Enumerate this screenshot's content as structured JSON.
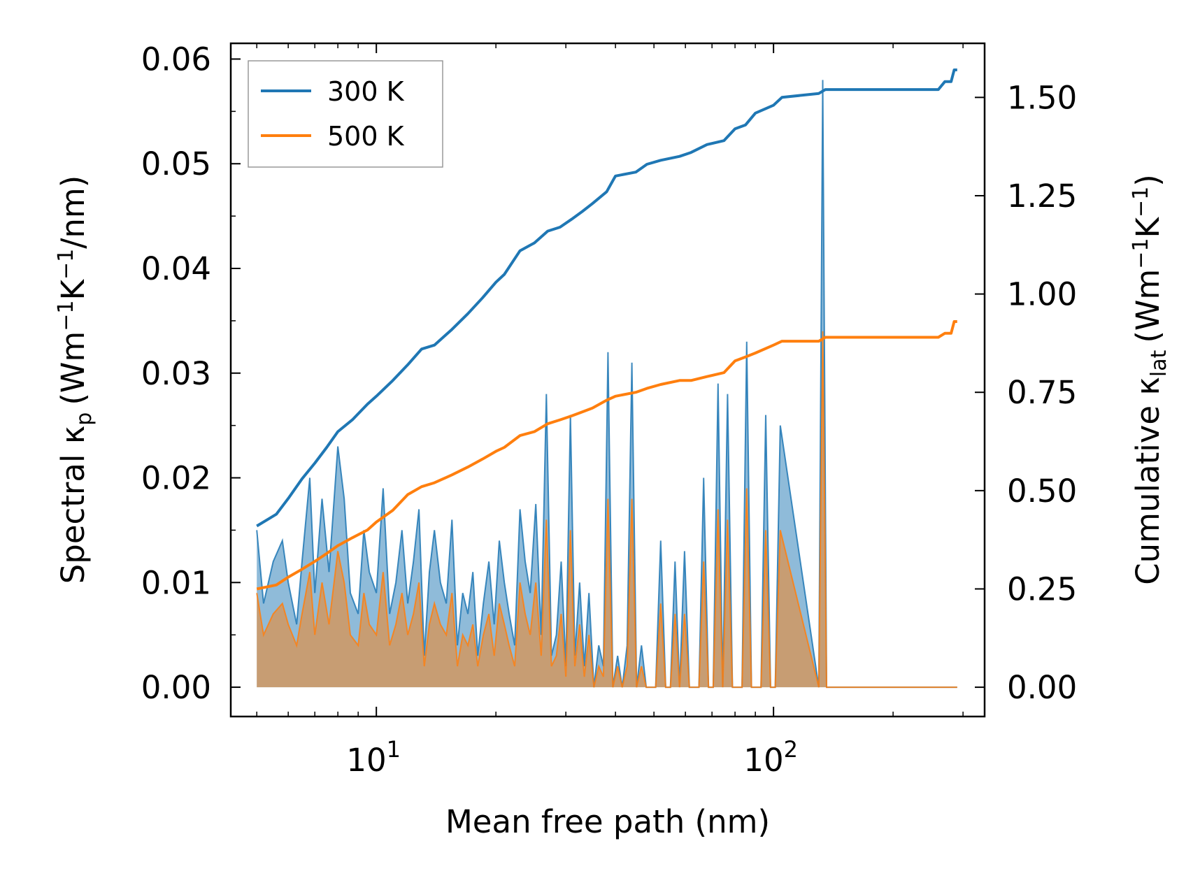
{
  "chart_data": {
    "type": "line",
    "xlabel": "Mean free path (nm)",
    "ylabel_left": {
      "main": "Spectral κ",
      "sub": "p",
      "units_pre": "(Wm",
      "sup1": "−1",
      "units_mid": "K",
      "sup2": "−1",
      "units_post": "/nm)"
    },
    "ylabel_right": {
      "main": "Cumulative κ",
      "sub": "lat",
      "units_pre": "(Wm",
      "sup1": "−1",
      "units_mid": "K",
      "sup2": "−1",
      "units_post": ")"
    },
    "xscale": "log",
    "xlim": [
      4.3,
      340
    ],
    "ylim_left": [
      -0.0028,
      0.0615
    ],
    "ylim_right": [
      -0.0745,
      1.6375
    ],
    "x_ticks": [
      {
        "value": 10,
        "base": "10",
        "exp": "1"
      },
      {
        "value": 100,
        "base": "10",
        "exp": "2"
      }
    ],
    "y_ticks_left": [
      "0.00",
      "0.01",
      "0.02",
      "0.03",
      "0.04",
      "0.05",
      "0.06"
    ],
    "y_ticks_right": [
      "0.00",
      "0.25",
      "0.50",
      "0.75",
      "1.00",
      "1.25",
      "1.50"
    ],
    "legend": {
      "position": "upper-left",
      "entries": [
        "300 K",
        "500 K"
      ]
    },
    "colors": {
      "s300": "#1f77b4",
      "s500": "#ff7f0e",
      "fill300": "#1f77b4",
      "fill500": "#ff7f0e"
    },
    "cumulative": [
      {
        "name": "300 K",
        "color": "#1f77b4",
        "x": [
          5.0,
          5.6,
          6.0,
          6.5,
          7.0,
          7.5,
          8.0,
          8.7,
          9.5,
          10.0,
          11.0,
          12.0,
          13.0,
          14.0,
          15.5,
          17.0,
          18.5,
          20.0,
          21.0,
          23.0,
          25.0,
          27.0,
          29.0,
          31.0,
          33.0,
          35.0,
          38.0,
          40.0,
          45.0,
          48.0,
          52.0,
          58.0,
          62.0,
          68.0,
          75.0,
          80.0,
          85.0,
          90.0,
          100.0,
          105.0,
          130.0,
          135.0,
          200.0,
          260.0,
          270.0,
          280.0,
          285.0,
          290.0
        ],
        "y": [
          0.41,
          0.44,
          0.48,
          0.53,
          0.57,
          0.61,
          0.65,
          0.68,
          0.72,
          0.74,
          0.78,
          0.82,
          0.86,
          0.87,
          0.91,
          0.95,
          0.99,
          1.03,
          1.05,
          1.11,
          1.13,
          1.16,
          1.17,
          1.19,
          1.21,
          1.23,
          1.26,
          1.3,
          1.31,
          1.33,
          1.34,
          1.35,
          1.36,
          1.38,
          1.39,
          1.42,
          1.43,
          1.46,
          1.48,
          1.5,
          1.51,
          1.52,
          1.52,
          1.52,
          1.54,
          1.54,
          1.57,
          1.57
        ]
      },
      {
        "name": "500 K",
        "color": "#ff7f0e",
        "x": [
          5.0,
          5.6,
          6.0,
          6.5,
          7.0,
          7.5,
          8.0,
          8.7,
          9.5,
          10.0,
          11.0,
          12.0,
          13.0,
          14.0,
          15.5,
          17.0,
          18.5,
          20.0,
          21.0,
          23.0,
          25.0,
          27.0,
          29.0,
          31.0,
          33.0,
          35.0,
          38.0,
          40.0,
          45.0,
          48.0,
          52.0,
          58.0,
          62.0,
          68.0,
          75.0,
          80.0,
          85.0,
          90.0,
          100.0,
          105.0,
          130.0,
          135.0,
          200.0,
          260.0,
          270.0,
          280.0,
          285.0,
          290.0
        ],
        "y": [
          0.25,
          0.26,
          0.28,
          0.3,
          0.32,
          0.34,
          0.36,
          0.38,
          0.4,
          0.42,
          0.45,
          0.49,
          0.51,
          0.52,
          0.54,
          0.56,
          0.58,
          0.6,
          0.61,
          0.64,
          0.65,
          0.67,
          0.68,
          0.69,
          0.7,
          0.71,
          0.73,
          0.74,
          0.75,
          0.76,
          0.77,
          0.78,
          0.78,
          0.79,
          0.8,
          0.83,
          0.84,
          0.85,
          0.87,
          0.88,
          0.88,
          0.89,
          0.89,
          0.89,
          0.9,
          0.9,
          0.93,
          0.93
        ]
      }
    ],
    "spectral": [
      {
        "name": "300 K",
        "color": "#1f77b4",
        "x": [
          5.0,
          5.2,
          5.5,
          5.8,
          6.0,
          6.3,
          6.5,
          6.8,
          7.0,
          7.3,
          7.6,
          8.0,
          8.3,
          8.6,
          9.0,
          9.3,
          9.6,
          10.0,
          10.4,
          10.8,
          11.2,
          11.6,
          12.0,
          12.4,
          12.8,
          13.2,
          13.6,
          14.0,
          14.5,
          15.0,
          15.5,
          16.0,
          16.5,
          17.0,
          17.5,
          18.0,
          18.6,
          19.2,
          19.8,
          20.4,
          21.0,
          21.6,
          22.3,
          23.0,
          23.7,
          24.4,
          25.2,
          26.0,
          26.8,
          27.6,
          28.4,
          29.2,
          30.0,
          30.8,
          31.6,
          32.5,
          33.4,
          34.3,
          35.3,
          36.3,
          37.3,
          38.3,
          39.4,
          40.5,
          41.6,
          42.8,
          44.0,
          45.2,
          46.5,
          47.8,
          49.1,
          50.5,
          52.0,
          53.5,
          55.0,
          56.5,
          58.0,
          59.7,
          61.4,
          63.1,
          64.9,
          66.7,
          68.6,
          70.5,
          72.5,
          74.5,
          76.6,
          78.8,
          81.0,
          83.3,
          85.6,
          88.0,
          90.5,
          93.0,
          95.6,
          98.3,
          101.0,
          104.0,
          130.0,
          133.0,
          136.0,
          260.0,
          265.0,
          270.0,
          275.0,
          280.0,
          285.0,
          290.0
        ],
        "y": [
          0.015,
          0.008,
          0.012,
          0.014,
          0.01,
          0.006,
          0.012,
          0.02,
          0.009,
          0.018,
          0.011,
          0.023,
          0.018,
          0.009,
          0.007,
          0.015,
          0.011,
          0.009,
          0.019,
          0.007,
          0.01,
          0.015,
          0.008,
          0.012,
          0.017,
          0.003,
          0.011,
          0.015,
          0.01,
          0.008,
          0.016,
          0.004,
          0.009,
          0.007,
          0.011,
          0.003,
          0.008,
          0.012,
          0.006,
          0.014,
          0.01,
          0.007,
          0.004,
          0.017,
          0.012,
          0.009,
          0.0175,
          0.005,
          0.028,
          0.003,
          0.005,
          0.012,
          0.002,
          0.026,
          0.003,
          0.01,
          0.002,
          0.009,
          0.0,
          0.004,
          0.002,
          0.032,
          0.0,
          0.003,
          0.0,
          0.004,
          0.031,
          0.0,
          0.004,
          0.0,
          0.0,
          0.0,
          0.014,
          0.0,
          0.0,
          0.012,
          0.0,
          0.013,
          0.0,
          0.0,
          0.0,
          0.02,
          0.0,
          0.0,
          0.029,
          0.0,
          0.028,
          0.0,
          0.0,
          0.0,
          0.033,
          0.0,
          0.0,
          0.0,
          0.026,
          0.0,
          0.0,
          0.025,
          0.0,
          0.058,
          0.0,
          0.0,
          0.0,
          0.0,
          0.0,
          0.0,
          0.0,
          0.0
        ]
      },
      {
        "name": "500 K",
        "color": "#ff7f0e",
        "x": [
          5.0,
          5.2,
          5.5,
          5.8,
          6.0,
          6.3,
          6.5,
          6.8,
          7.0,
          7.3,
          7.6,
          8.0,
          8.3,
          8.6,
          9.0,
          9.3,
          9.6,
          10.0,
          10.4,
          10.8,
          11.2,
          11.6,
          12.0,
          12.4,
          12.8,
          13.2,
          13.6,
          14.0,
          14.5,
          15.0,
          15.5,
          16.0,
          16.5,
          17.0,
          17.5,
          18.0,
          18.6,
          19.2,
          19.8,
          20.4,
          21.0,
          21.6,
          22.3,
          23.0,
          23.7,
          24.4,
          25.2,
          26.0,
          26.8,
          27.6,
          28.4,
          29.2,
          30.0,
          30.8,
          31.6,
          32.5,
          33.4,
          34.3,
          35.3,
          36.3,
          37.3,
          38.3,
          39.4,
          40.5,
          41.6,
          42.8,
          44.0,
          45.2,
          46.5,
          47.8,
          49.1,
          50.5,
          52.0,
          53.5,
          55.0,
          56.5,
          58.0,
          59.7,
          61.4,
          63.1,
          64.9,
          66.7,
          68.6,
          70.5,
          72.5,
          74.5,
          76.6,
          78.8,
          81.0,
          83.3,
          85.6,
          88.0,
          90.5,
          93.0,
          95.6,
          98.3,
          101.0,
          104.0,
          130.0,
          133.0,
          136.0,
          260.0,
          265.0,
          270.0,
          275.0,
          280.0,
          285.0,
          290.0
        ],
        "y": [
          0.009,
          0.005,
          0.007,
          0.008,
          0.006,
          0.004,
          0.007,
          0.011,
          0.005,
          0.01,
          0.006,
          0.013,
          0.01,
          0.005,
          0.004,
          0.009,
          0.006,
          0.005,
          0.011,
          0.004,
          0.006,
          0.009,
          0.005,
          0.007,
          0.01,
          0.002,
          0.006,
          0.008,
          0.006,
          0.005,
          0.009,
          0.002,
          0.005,
          0.004,
          0.006,
          0.002,
          0.005,
          0.007,
          0.003,
          0.008,
          0.006,
          0.004,
          0.002,
          0.01,
          0.007,
          0.005,
          0.01,
          0.003,
          0.016,
          0.002,
          0.003,
          0.007,
          0.001,
          0.015,
          0.002,
          0.006,
          0.001,
          0.005,
          0.0,
          0.002,
          0.001,
          0.018,
          0.0,
          0.002,
          0.0,
          0.002,
          0.018,
          0.0,
          0.002,
          0.0,
          0.0,
          0.0,
          0.008,
          0.0,
          0.0,
          0.007,
          0.0,
          0.007,
          0.0,
          0.0,
          0.0,
          0.012,
          0.0,
          0.0,
          0.017,
          0.0,
          0.016,
          0.0,
          0.0,
          0.0,
          0.019,
          0.0,
          0.0,
          0.0,
          0.015,
          0.0,
          0.0,
          0.015,
          0.0,
          0.034,
          0.0,
          0.0,
          0.0,
          0.0,
          0.0,
          0.0,
          0.0,
          0.0
        ]
      }
    ]
  }
}
